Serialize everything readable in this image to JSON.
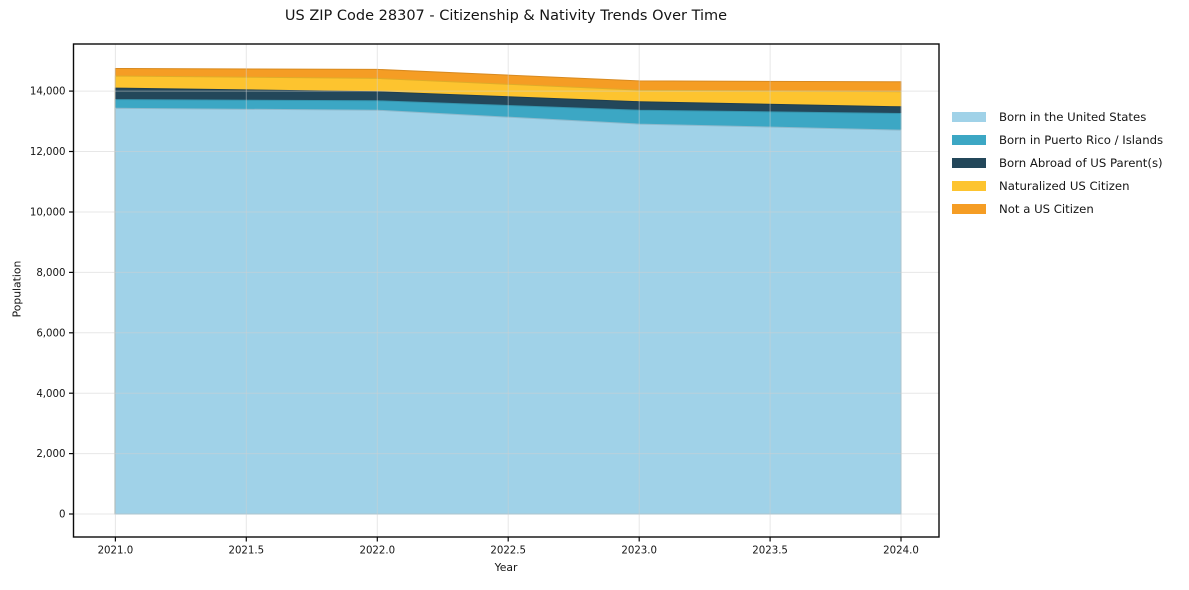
{
  "title": "US ZIP Code 28307 - Citizenship & Nativity Trends Over Time",
  "chart_data": {
    "type": "area",
    "stacked": true,
    "title": "US ZIP Code 28307 - Citizenship & Nativity Trends Over Time",
    "xlabel": "Year",
    "ylabel": "Population",
    "x": [
      2021,
      2022,
      2023,
      2024
    ],
    "series": [
      {
        "name": "Born in the United States",
        "color": "#a0d2e8",
        "values": [
          13430,
          13370,
          12910,
          12710
        ]
      },
      {
        "name": "Born in Puerto Rico / Islands",
        "color": "#3ca7c4",
        "values": [
          290,
          310,
          460,
          550
        ]
      },
      {
        "name": "Born Abroad of US Parent(s)",
        "color": "#23475a",
        "values": [
          380,
          300,
          280,
          220
        ]
      },
      {
        "name": "Naturalized US Citizen",
        "color": "#fdc42f",
        "values": [
          400,
          440,
          380,
          500
        ]
      },
      {
        "name": "Not a US Citizen",
        "color": "#f59d24",
        "values": [
          250,
          300,
          310,
          330
        ]
      }
    ],
    "totals": [
      14750,
      14720,
      14340,
      14310
    ],
    "x_ticks": [
      2021.0,
      2021.5,
      2022.0,
      2022.5,
      2023.0,
      2023.5,
      2024.0
    ],
    "x_tick_labels": [
      "2021.0",
      "2021.5",
      "2022.0",
      "2022.5",
      "2023.0",
      "2023.5",
      "2024.0"
    ],
    "y_ticks": [
      0,
      2000,
      4000,
      6000,
      8000,
      10000,
      12000,
      14000
    ],
    "y_tick_labels": [
      "0",
      "2,000",
      "4,000",
      "6,000",
      "8,000",
      "10,000",
      "12,000",
      "14,000"
    ],
    "xlim": [
      2020.84,
      2024.145
    ],
    "ylim": [
      -760,
      15560
    ],
    "grid": true,
    "legend_position": "right"
  }
}
